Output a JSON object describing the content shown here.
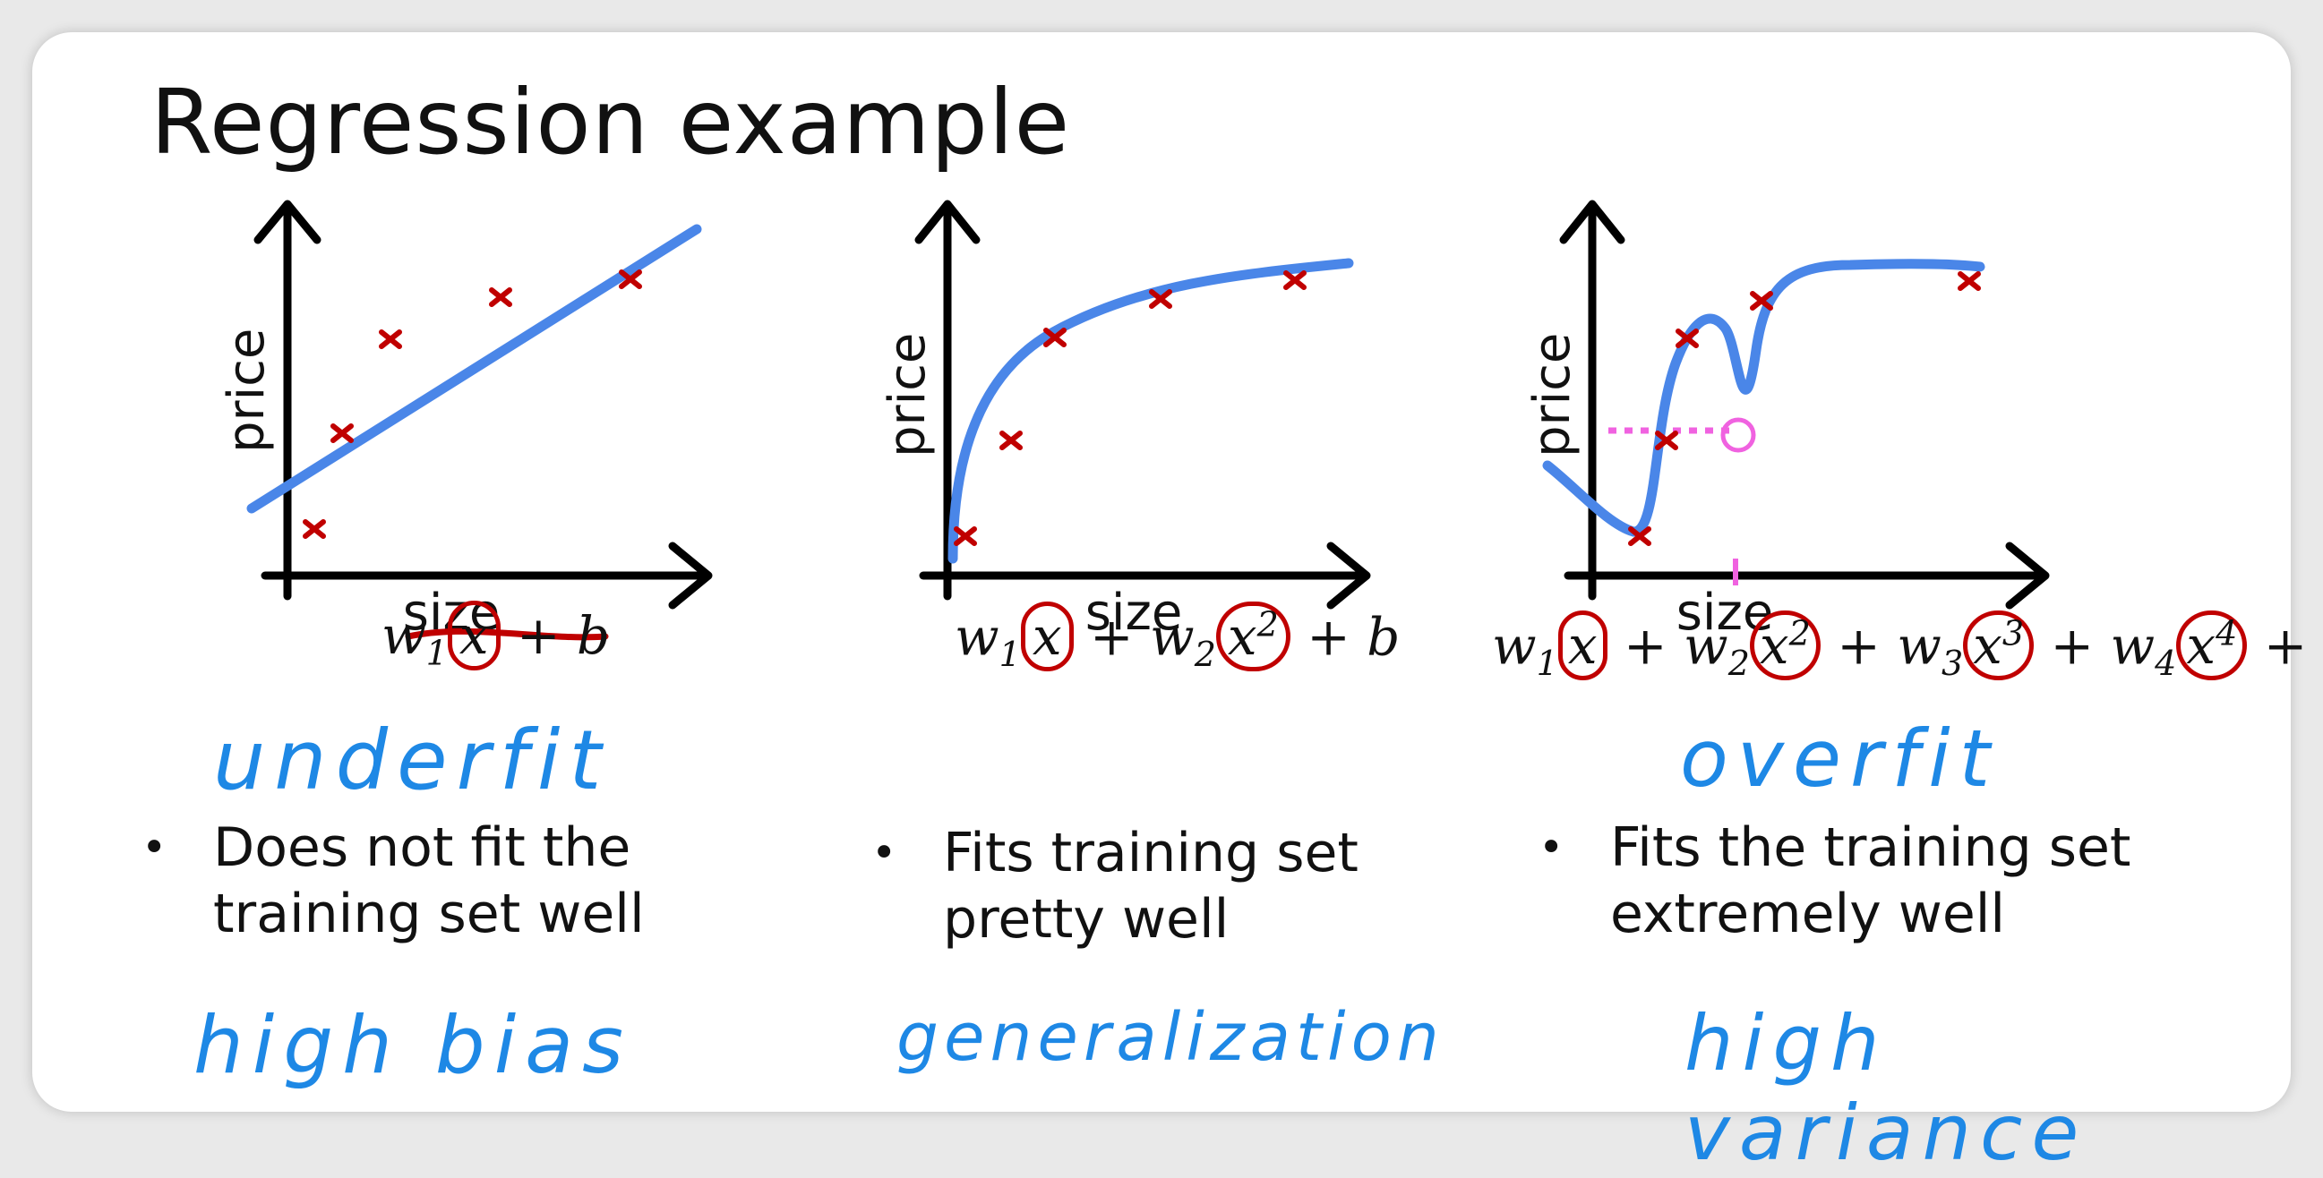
{
  "title": "Regression example",
  "colors": {
    "fit_curve": "#4a86e8",
    "points": "#c00000",
    "annotation_ink": "#c00000",
    "handwriting": "#1e88e5",
    "dotted_guide": "#f062e0"
  },
  "panels": [
    {
      "id": "left",
      "ylabel": "price",
      "xlabel": "size",
      "formula": {
        "t1": "w",
        "s1": "1",
        "x1": "x",
        "rest": " + b"
      },
      "hand_label": "underfit",
      "bullet": [
        "Does not fit the",
        "training set well"
      ],
      "bottom_note": "high bias"
    },
    {
      "id": "middle",
      "ylabel": "price",
      "xlabel": "size",
      "formula": {
        "t1": "w",
        "s1": "1",
        "x1": "x",
        "plus1": " + ",
        "t2": "w",
        "s2": "2",
        "x2": "x",
        "p2": "2",
        "rest": " + b"
      },
      "hand_label": "",
      "bullet": [
        "Fits training set",
        "pretty well"
      ],
      "bottom_note": "generalization"
    },
    {
      "id": "right",
      "ylabel": "price",
      "xlabel": "size",
      "formula": {
        "t1": "w",
        "s1": "1",
        "x1": "x",
        "plus1": " + ",
        "t2": "w",
        "s2": "2",
        "x2": "x",
        "p2": "2",
        "plus2": " + ",
        "t3": "w",
        "s3": "3",
        "x3": "x",
        "p3": "3",
        "plus3": " + ",
        "t4": "w",
        "s4": "4",
        "x4": "x",
        "p4": "4",
        "rest": " + b"
      },
      "hand_label": "overfit",
      "bullet": [
        "Fits the training set",
        "extremely well"
      ],
      "bottom_note": "high variance"
    }
  ]
}
